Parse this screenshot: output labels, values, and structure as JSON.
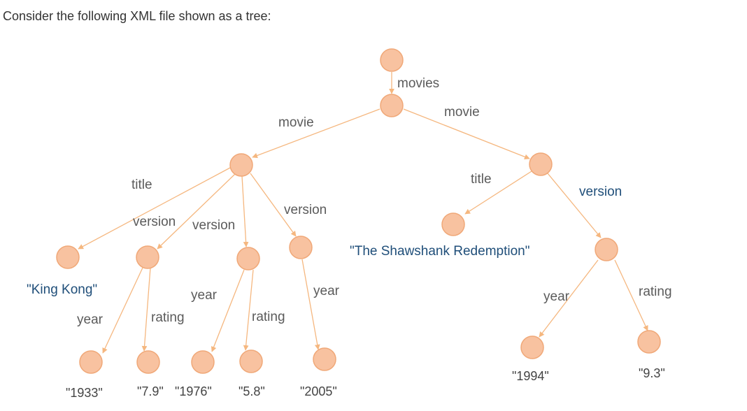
{
  "question": "Consider the following XML file shown as a tree:",
  "colors": {
    "node_fill": "#f8c2a0",
    "node_stroke": "#f0a878",
    "edge": "#f5b77f",
    "label_gray": "#5b5b5b",
    "label_blue": "#1f4e79"
  },
  "tree": {
    "root_label": "movies",
    "movie_labels": [
      "movie",
      "movie"
    ],
    "m1_labels": {
      "title": "title",
      "version1": "version",
      "version2": "version",
      "version3": "version"
    },
    "m1_title": "\"King Kong\"",
    "m1_v1_labels": {
      "year": "year",
      "rating": "rating"
    },
    "m1_v1_values": {
      "year": "\"1933\"",
      "rating": "\"7.9\""
    },
    "m1_v2_labels": {
      "year": "year",
      "rating": "rating"
    },
    "m1_v2_values": {
      "year": "\"1976\"",
      "rating": "\"5.8\""
    },
    "m1_v3_labels": {
      "year": "year"
    },
    "m1_v3_values": {
      "year": "\"2005\""
    },
    "m2_labels": {
      "title": "title",
      "version": "version"
    },
    "m2_title": "\"The Shawshank Redemption\"",
    "m2_v_labels": {
      "year": "year",
      "rating": "rating"
    },
    "m2_v_values": {
      "year": "\"1994\"",
      "rating": "\"9.3\""
    }
  }
}
